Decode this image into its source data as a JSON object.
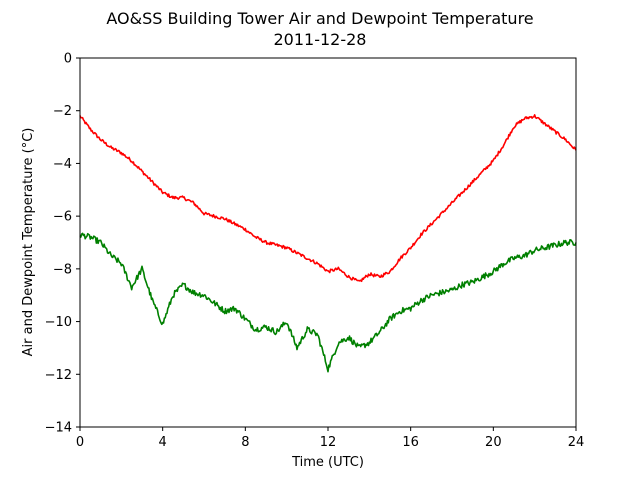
{
  "chart_data": {
    "type": "line",
    "title": "AO&SS Building Tower Air and Dewpoint Temperature",
    "subtitle": "2011-12-28",
    "xlabel": "Time (UTC)",
    "ylabel": "Air and Dewpoint Temperature (°C)",
    "xlim": [
      0,
      24
    ],
    "ylim": [
      -14,
      0
    ],
    "xticks": [
      0,
      4,
      8,
      12,
      16,
      20,
      24
    ],
    "yticks": [
      -14,
      -12,
      -10,
      -8,
      -6,
      -4,
      -2,
      0
    ],
    "grid": false,
    "series": [
      {
        "color": "#ff0000",
        "x": [
          0,
          0.5,
          1,
          1.5,
          2,
          2.5,
          3,
          3.5,
          4,
          4.5,
          5,
          5.5,
          6,
          6.5,
          7,
          7.5,
          8,
          8.5,
          9,
          9.5,
          10,
          10.5,
          11,
          11.5,
          12,
          12.5,
          13,
          13.5,
          14,
          14.5,
          15,
          15.5,
          16,
          16.5,
          17,
          17.5,
          18,
          18.5,
          19,
          19.5,
          20,
          20.5,
          21,
          21.5,
          22,
          22.5,
          23,
          23.5,
          24
        ],
        "y": [
          -2.2,
          -2.7,
          -3.1,
          -3.4,
          -3.6,
          -3.9,
          -4.3,
          -4.7,
          -5.1,
          -5.3,
          -5.3,
          -5.5,
          -5.9,
          -6.0,
          -6.1,
          -6.3,
          -6.5,
          -6.8,
          -7.0,
          -7.1,
          -7.2,
          -7.4,
          -7.6,
          -7.8,
          -8.1,
          -8.0,
          -8.3,
          -8.5,
          -8.2,
          -8.3,
          -8.1,
          -7.6,
          -7.2,
          -6.7,
          -6.3,
          -5.9,
          -5.5,
          -5.1,
          -4.7,
          -4.3,
          -3.9,
          -3.3,
          -2.6,
          -2.3,
          -2.2,
          -2.5,
          -2.8,
          -3.1,
          -3.5
        ]
      },
      {
        "color": "#008000",
        "x": [
          0,
          0.5,
          1,
          1.5,
          2,
          2.5,
          3,
          3.5,
          4,
          4.5,
          5,
          5.5,
          6,
          6.5,
          7,
          7.5,
          8,
          8.5,
          9,
          9.5,
          10,
          10.5,
          11,
          11.5,
          12,
          12.5,
          13,
          13.5,
          14,
          14.5,
          15,
          15.5,
          16,
          16.5,
          17,
          17.5,
          18,
          18.5,
          19,
          19.5,
          20,
          20.5,
          21,
          21.5,
          22,
          22.5,
          23,
          23.5,
          24
        ],
        "y": [
          -6.7,
          -6.8,
          -7.0,
          -7.5,
          -7.8,
          -8.7,
          -8.0,
          -9.2,
          -10.1,
          -9.0,
          -8.6,
          -8.9,
          -9.0,
          -9.3,
          -9.6,
          -9.5,
          -9.9,
          -10.3,
          -10.2,
          -10.4,
          -10.0,
          -11.0,
          -10.3,
          -10.5,
          -11.8,
          -10.8,
          -10.6,
          -11.0,
          -10.8,
          -10.4,
          -9.9,
          -9.6,
          -9.5,
          -9.2,
          -9.0,
          -8.9,
          -8.8,
          -8.6,
          -8.5,
          -8.3,
          -8.1,
          -7.8,
          -7.6,
          -7.5,
          -7.3,
          -7.2,
          -7.1,
          -7.0,
          -7.0
        ]
      }
    ]
  }
}
